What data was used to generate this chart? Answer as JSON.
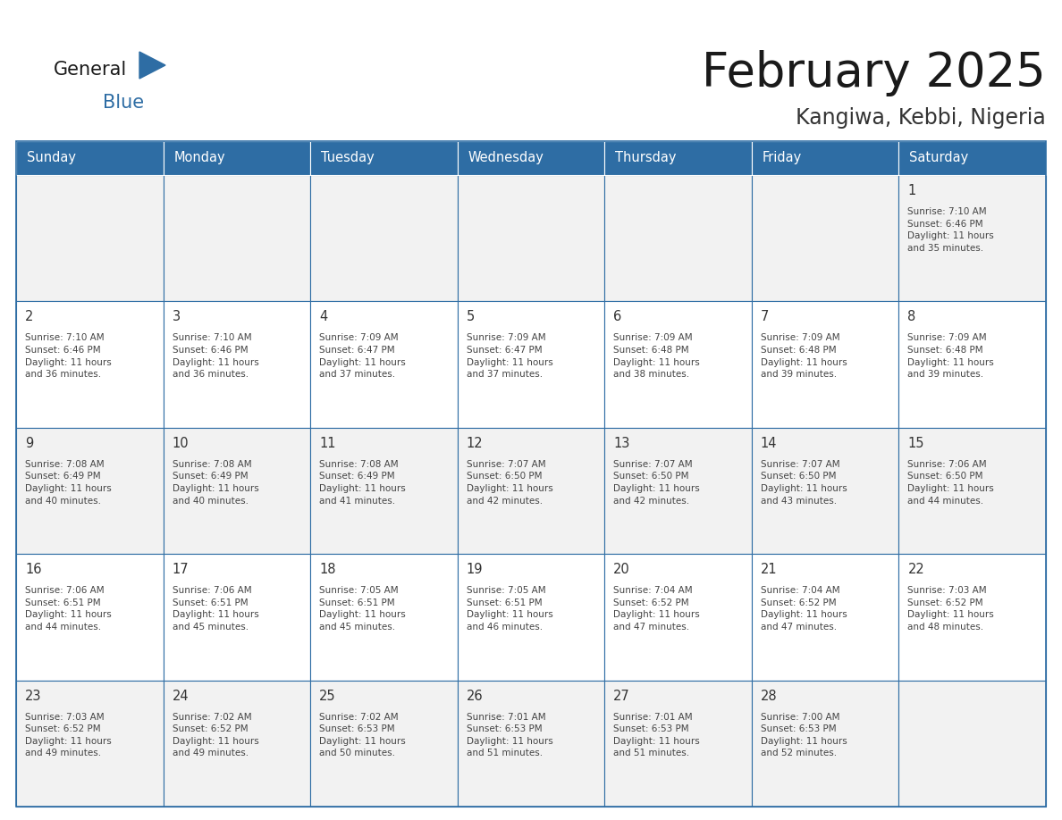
{
  "title": "February 2025",
  "subtitle": "Kangiwa, Kebbi, Nigeria",
  "header_bg": "#2E6DA4",
  "header_text": "#FFFFFF",
  "cell_border": "#2E6DA4",
  "cell_bg_light": "#F2F2F2",
  "cell_bg_white": "#FFFFFF",
  "title_color": "#1a1a1a",
  "subtitle_color": "#333333",
  "logo_general_color": "#1a1a1a",
  "logo_blue_color": "#2E6DA4",
  "day_headers": [
    "Sunday",
    "Monday",
    "Tuesday",
    "Wednesday",
    "Thursday",
    "Friday",
    "Saturday"
  ],
  "weeks": [
    [
      {
        "day": "",
        "info": ""
      },
      {
        "day": "",
        "info": ""
      },
      {
        "day": "",
        "info": ""
      },
      {
        "day": "",
        "info": ""
      },
      {
        "day": "",
        "info": ""
      },
      {
        "day": "",
        "info": ""
      },
      {
        "day": "1",
        "info": "Sunrise: 7:10 AM\nSunset: 6:46 PM\nDaylight: 11 hours\nand 35 minutes."
      }
    ],
    [
      {
        "day": "2",
        "info": "Sunrise: 7:10 AM\nSunset: 6:46 PM\nDaylight: 11 hours\nand 36 minutes."
      },
      {
        "day": "3",
        "info": "Sunrise: 7:10 AM\nSunset: 6:46 PM\nDaylight: 11 hours\nand 36 minutes."
      },
      {
        "day": "4",
        "info": "Sunrise: 7:09 AM\nSunset: 6:47 PM\nDaylight: 11 hours\nand 37 minutes."
      },
      {
        "day": "5",
        "info": "Sunrise: 7:09 AM\nSunset: 6:47 PM\nDaylight: 11 hours\nand 37 minutes."
      },
      {
        "day": "6",
        "info": "Sunrise: 7:09 AM\nSunset: 6:48 PM\nDaylight: 11 hours\nand 38 minutes."
      },
      {
        "day": "7",
        "info": "Sunrise: 7:09 AM\nSunset: 6:48 PM\nDaylight: 11 hours\nand 39 minutes."
      },
      {
        "day": "8",
        "info": "Sunrise: 7:09 AM\nSunset: 6:48 PM\nDaylight: 11 hours\nand 39 minutes."
      }
    ],
    [
      {
        "day": "9",
        "info": "Sunrise: 7:08 AM\nSunset: 6:49 PM\nDaylight: 11 hours\nand 40 minutes."
      },
      {
        "day": "10",
        "info": "Sunrise: 7:08 AM\nSunset: 6:49 PM\nDaylight: 11 hours\nand 40 minutes."
      },
      {
        "day": "11",
        "info": "Sunrise: 7:08 AM\nSunset: 6:49 PM\nDaylight: 11 hours\nand 41 minutes."
      },
      {
        "day": "12",
        "info": "Sunrise: 7:07 AM\nSunset: 6:50 PM\nDaylight: 11 hours\nand 42 minutes."
      },
      {
        "day": "13",
        "info": "Sunrise: 7:07 AM\nSunset: 6:50 PM\nDaylight: 11 hours\nand 42 minutes."
      },
      {
        "day": "14",
        "info": "Sunrise: 7:07 AM\nSunset: 6:50 PM\nDaylight: 11 hours\nand 43 minutes."
      },
      {
        "day": "15",
        "info": "Sunrise: 7:06 AM\nSunset: 6:50 PM\nDaylight: 11 hours\nand 44 minutes."
      }
    ],
    [
      {
        "day": "16",
        "info": "Sunrise: 7:06 AM\nSunset: 6:51 PM\nDaylight: 11 hours\nand 44 minutes."
      },
      {
        "day": "17",
        "info": "Sunrise: 7:06 AM\nSunset: 6:51 PM\nDaylight: 11 hours\nand 45 minutes."
      },
      {
        "day": "18",
        "info": "Sunrise: 7:05 AM\nSunset: 6:51 PM\nDaylight: 11 hours\nand 45 minutes."
      },
      {
        "day": "19",
        "info": "Sunrise: 7:05 AM\nSunset: 6:51 PM\nDaylight: 11 hours\nand 46 minutes."
      },
      {
        "day": "20",
        "info": "Sunrise: 7:04 AM\nSunset: 6:52 PM\nDaylight: 11 hours\nand 47 minutes."
      },
      {
        "day": "21",
        "info": "Sunrise: 7:04 AM\nSunset: 6:52 PM\nDaylight: 11 hours\nand 47 minutes."
      },
      {
        "day": "22",
        "info": "Sunrise: 7:03 AM\nSunset: 6:52 PM\nDaylight: 11 hours\nand 48 minutes."
      }
    ],
    [
      {
        "day": "23",
        "info": "Sunrise: 7:03 AM\nSunset: 6:52 PM\nDaylight: 11 hours\nand 49 minutes."
      },
      {
        "day": "24",
        "info": "Sunrise: 7:02 AM\nSunset: 6:52 PM\nDaylight: 11 hours\nand 49 minutes."
      },
      {
        "day": "25",
        "info": "Sunrise: 7:02 AM\nSunset: 6:53 PM\nDaylight: 11 hours\nand 50 minutes."
      },
      {
        "day": "26",
        "info": "Sunrise: 7:01 AM\nSunset: 6:53 PM\nDaylight: 11 hours\nand 51 minutes."
      },
      {
        "day": "27",
        "info": "Sunrise: 7:01 AM\nSunset: 6:53 PM\nDaylight: 11 hours\nand 51 minutes."
      },
      {
        "day": "28",
        "info": "Sunrise: 7:00 AM\nSunset: 6:53 PM\nDaylight: 11 hours\nand 52 minutes."
      },
      {
        "day": "",
        "info": ""
      }
    ]
  ]
}
